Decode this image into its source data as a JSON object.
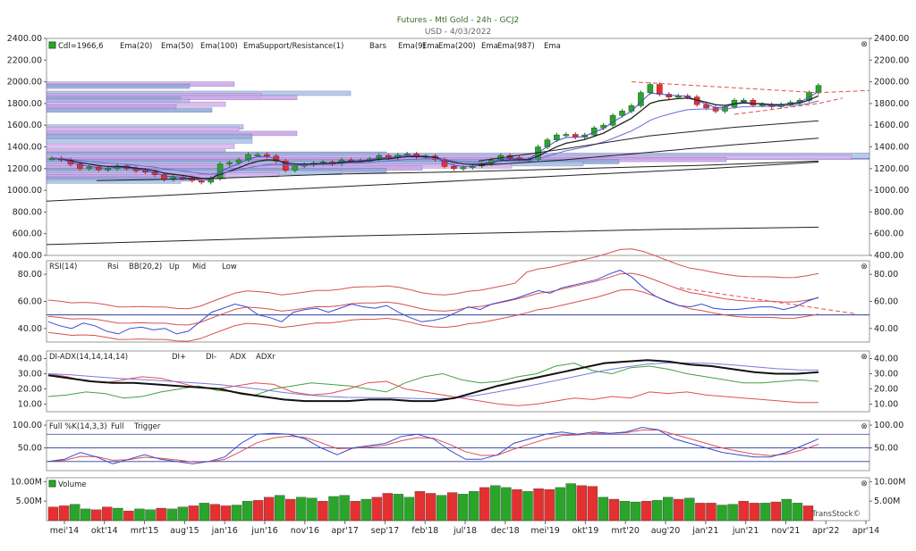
{
  "header": {
    "title": "Futures - Mtl Gold - 24h - GCJ2",
    "subtitle": "USD - 4/03/2022"
  },
  "brand": "TransStock©",
  "colors": {
    "up": "#2aa52a",
    "down": "#e53030",
    "ema_thin": "#4a4acb",
    "ema_dark": "#222",
    "sr": "#e05050",
    "rsi": "#3a4ad0",
    "bb": "#d85050",
    "di_plus": "#44a044",
    "di_minus": "#e05050",
    "adx": "#111",
    "adxr": "#7a7ae0",
    "stoch_full": "#3a4ad0",
    "stoch_trigger": "#e05050"
  },
  "legends": {
    "price": [
      "Cdl=1966,6",
      "Ema(20)",
      "Ema(50)",
      "Ema(100)",
      "Ema",
      "Support/Resistance(1)",
      "Bars",
      "Ema(9)",
      "Ema",
      "Ema(200)",
      "Ema",
      "Ema(987)",
      "Ema"
    ],
    "rsi": [
      "RSI(14)",
      "Rsi",
      "BB(20,2)",
      "Up",
      "Mid",
      "Low"
    ],
    "adx": [
      "DI-ADX(14,14,14,14)",
      "DI+",
      "DI-",
      "ADX",
      "ADXr"
    ],
    "stoch": [
      "Full %K(14,3,3)",
      "Full",
      "Trigger"
    ],
    "volume": [
      "Volume"
    ]
  },
  "x_labels": [
    "mei'14",
    "okt'14",
    "mrt'15",
    "aug'15",
    "jan'16",
    "jun'16",
    "nov'16",
    "apr'17",
    "sep'17",
    "feb'18",
    "jul'18",
    "dec'18",
    "mei'19",
    "okt'19",
    "mrt'20",
    "aug'20",
    "jan'21",
    "jun'21",
    "nov'21",
    "apr'22",
    "apr'14"
  ],
  "chart_data": [
    {
      "type": "candlestick",
      "panel": "price",
      "ylim": [
        400,
        2400
      ],
      "yticks": [
        "400.00",
        "600.00",
        "800.00",
        "1000.00",
        "1200.00",
        "1400.00",
        "1600.00",
        "1800.00",
        "2000.00",
        "2200.00",
        "2400.00"
      ],
      "last_close": 1966.6,
      "closes": [
        1295,
        1280,
        1240,
        1200,
        1215,
        1190,
        1200,
        1225,
        1200,
        1180,
        1170,
        1145,
        1100,
        1120,
        1115,
        1090,
        1075,
        1110,
        1240,
        1255,
        1280,
        1330,
        1330,
        1315,
        1270,
        1185,
        1225,
        1235,
        1250,
        1260,
        1245,
        1280,
        1275,
        1275,
        1290,
        1320,
        1300,
        1325,
        1335,
        1310,
        1315,
        1285,
        1220,
        1200,
        1210,
        1225,
        1245,
        1280,
        1320,
        1300,
        1285,
        1285,
        1400,
        1465,
        1510,
        1515,
        1490,
        1510,
        1575,
        1600,
        1690,
        1730,
        1780,
        1900,
        1975,
        1885,
        1860,
        1870,
        1860,
        1790,
        1760,
        1730,
        1770,
        1830,
        1830,
        1785,
        1790,
        1770,
        1790,
        1810,
        1830,
        1900,
        1966
      ]
    },
    {
      "type": "line",
      "panel": "rsi",
      "ylim": [
        30,
        90
      ],
      "yticks": [
        "40.00",
        "60.00",
        "80.00"
      ],
      "series": [
        {
          "name": "Rsi",
          "values": [
            45,
            42,
            40,
            44,
            42,
            38,
            36,
            40,
            41,
            39,
            40,
            36,
            38,
            45,
            52,
            55,
            58,
            56,
            50,
            48,
            45,
            52,
            54,
            55,
            52,
            55,
            58,
            56,
            55,
            57,
            52,
            48,
            45,
            46,
            48,
            52,
            56,
            54,
            58,
            60,
            62,
            65,
            68,
            66,
            70,
            72,
            74,
            76,
            80,
            83,
            78,
            70,
            64,
            60,
            57,
            56,
            58,
            55,
            54,
            54,
            55,
            56,
            56,
            54,
            56,
            60,
            63
          ]
        }
      ]
    },
    {
      "type": "line",
      "panel": "adx",
      "ylim": [
        5,
        45
      ],
      "yticks": [
        "10.00",
        "20.00",
        "30.00",
        "40.00"
      ],
      "series": [
        {
          "name": "DI+",
          "values": [
            15,
            16,
            18,
            17,
            14,
            15,
            18,
            20,
            22,
            19,
            18,
            16,
            20,
            22,
            24,
            23,
            22,
            20,
            18,
            24,
            28,
            30,
            26,
            24,
            25,
            28,
            30,
            35,
            37,
            32,
            30,
            34,
            35,
            33,
            30,
            28,
            26,
            24,
            24,
            25,
            26,
            25
          ]
        },
        {
          "name": "DI-",
          "values": [
            30,
            28,
            25,
            24,
            26,
            28,
            27,
            24,
            21,
            20,
            22,
            24,
            23,
            18,
            16,
            17,
            20,
            24,
            25,
            20,
            18,
            16,
            14,
            12,
            10,
            9,
            10,
            12,
            14,
            13,
            15,
            14,
            18,
            17,
            18,
            16,
            15,
            14,
            13,
            12,
            11,
            11
          ]
        },
        {
          "name": "ADX",
          "values": [
            29,
            27,
            25,
            24,
            24,
            23,
            22,
            21,
            20,
            17,
            15,
            13,
            12,
            12,
            12,
            13,
            13,
            12,
            12,
            14,
            18,
            22,
            25,
            28,
            31,
            34,
            37,
            38,
            39,
            38,
            36,
            35,
            33,
            31,
            30,
            30,
            31
          ]
        }
      ]
    },
    {
      "type": "line",
      "panel": "stoch",
      "ylim": [
        0,
        110
      ],
      "yticks": [
        "50.00",
        "100.00"
      ],
      "series": [
        {
          "name": "Full",
          "values": [
            20,
            25,
            40,
            30,
            15,
            25,
            35,
            25,
            20,
            15,
            20,
            30,
            60,
            80,
            82,
            80,
            70,
            50,
            35,
            50,
            55,
            60,
            75,
            80,
            70,
            45,
            25,
            25,
            35,
            60,
            70,
            80,
            85,
            80,
            85,
            82,
            85,
            95,
            90,
            70,
            60,
            50,
            40,
            35,
            30,
            30,
            40,
            55,
            70
          ]
        }
      ]
    },
    {
      "type": "bar",
      "panel": "volume",
      "ylim": [
        0,
        11
      ],
      "yticks": [
        "5.00M",
        "10.00M"
      ],
      "values": [
        3.5,
        3.8,
        4.2,
        3.0,
        2.8,
        3.5,
        3.2,
        2.5,
        3.0,
        2.8,
        3.2,
        3.0,
        3.5,
        3.8,
        4.5,
        4.2,
        3.8,
        4.0,
        5.0,
        5.2,
        6.0,
        6.5,
        5.5,
        6.0,
        5.8,
        5.0,
        6.2,
        6.5,
        5.0,
        5.5,
        6.0,
        7.0,
        6.8,
        6.0,
        7.5,
        7.0,
        6.5,
        7.2,
        6.8,
        7.5,
        8.5,
        9.0,
        8.5,
        8.0,
        7.5,
        8.2,
        8.0,
        8.5,
        9.5,
        9.0,
        8.8,
        6.0,
        5.5,
        5.0,
        4.8,
        5.0,
        5.2,
        6.0,
        5.5,
        5.8,
        4.5,
        4.5,
        4.0,
        4.2,
        5.0,
        4.5,
        4.5,
        4.8,
        5.5,
        4.5,
        3.8
      ]
    }
  ]
}
